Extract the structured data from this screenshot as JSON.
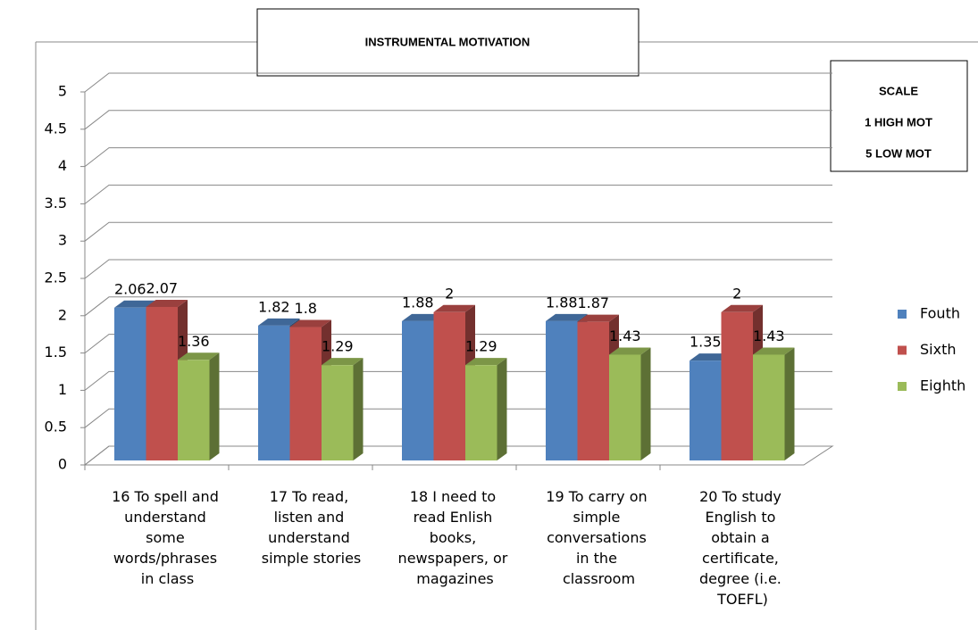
{
  "chart_data": {
    "type": "bar3d",
    "title": "INSTRUMENTAL MOTIVATION",
    "annotations": [
      "SCALE",
      "1 HIGH MOT",
      "5 LOW MOT"
    ],
    "categories": [
      "16 To spell and understand some words/phrases in class",
      "17 To read, listen and understand simple stories",
      "18 I need to read Enlish books, newspapers, or magazines",
      "19 To carry on simple conversations in the classroom",
      "20 To study English to obtain a certificate, degree (i.e. TOEFL)"
    ],
    "series": [
      {
        "name": "Fouth",
        "color": "#4f81bd",
        "values": [
          2.06,
          1.82,
          1.88,
          1.88,
          1.35
        ]
      },
      {
        "name": "Sixth",
        "color": "#c0504d",
        "values": [
          2.07,
          1.8,
          2,
          1.87,
          2
        ]
      },
      {
        "name": "Eighth",
        "color": "#9bbb59",
        "values": [
          1.36,
          1.29,
          1.29,
          1.43,
          1.43
        ]
      }
    ],
    "ylim": [
      0,
      5
    ],
    "yticks": [
      0,
      0.5,
      1,
      1.5,
      2,
      2.5,
      3,
      3.5,
      4,
      4.5,
      5
    ],
    "grid": true,
    "legend": "right"
  }
}
